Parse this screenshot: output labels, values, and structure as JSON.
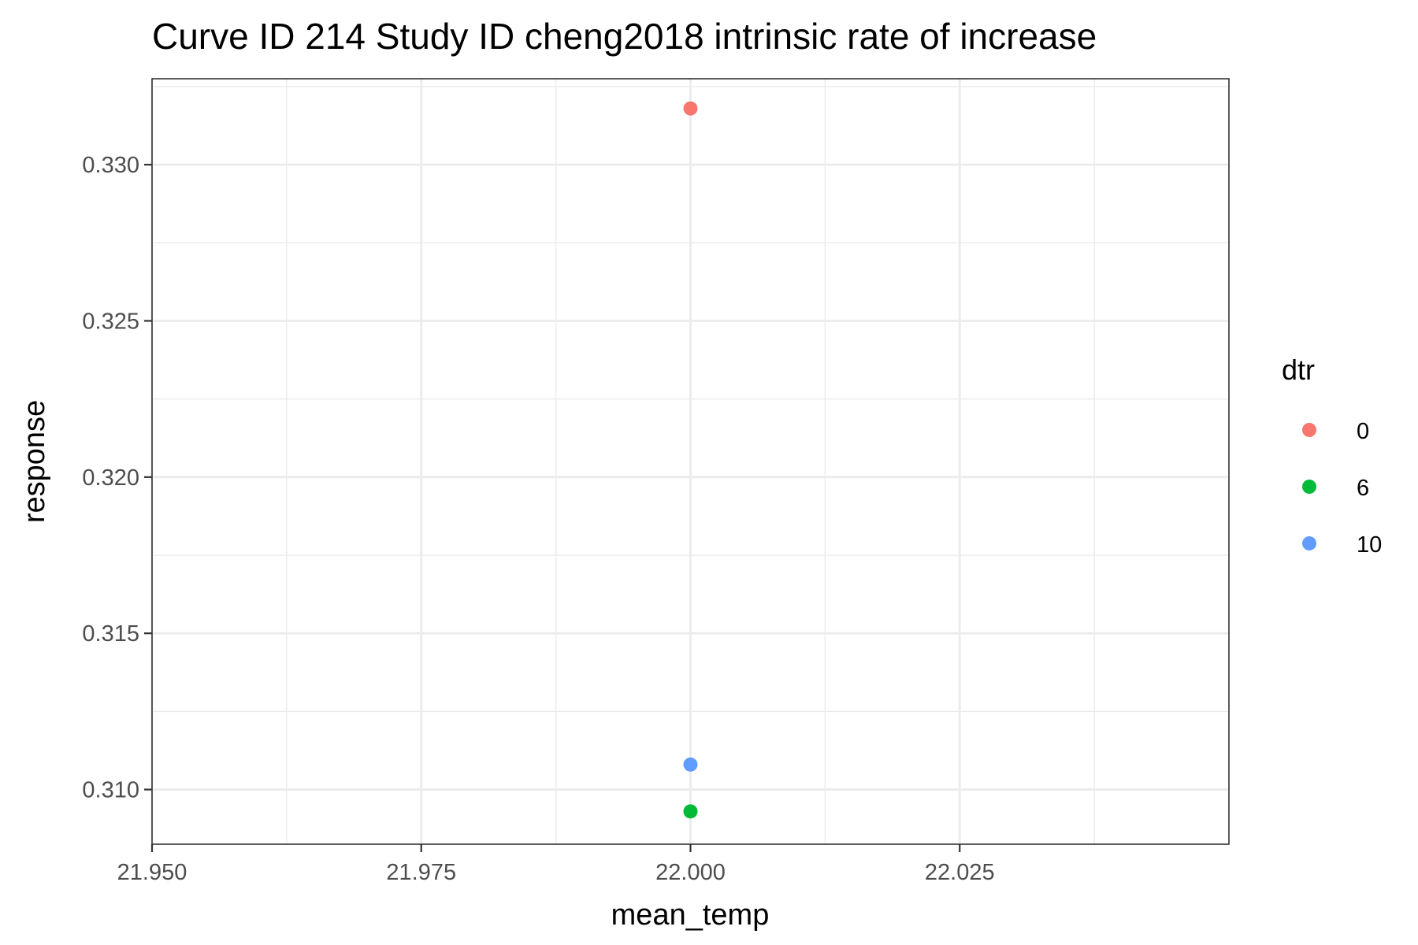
{
  "chart_data": {
    "type": "scatter",
    "title": "Curve ID 214 Study ID cheng2018 intrinsic rate of increase",
    "xlabel": "mean_temp",
    "ylabel": "response",
    "xlim": [
      21.95,
      22.05
    ],
    "ylim": [
      0.30825,
      0.33275
    ],
    "x_ticks": [
      21.95,
      21.975,
      22.0,
      22.025
    ],
    "x_tick_labels": [
      "21.950",
      "21.975",
      "22.000",
      "22.025"
    ],
    "y_ticks": [
      0.31,
      0.315,
      0.32,
      0.325,
      0.33
    ],
    "y_tick_labels": [
      "0.310",
      "0.315",
      "0.320",
      "0.325",
      "0.330"
    ],
    "grid": true,
    "legend": {
      "title": "dtr",
      "position": "right"
    },
    "series": [
      {
        "name": "0",
        "color": "#F8766D",
        "points": [
          {
            "x": 22.0,
            "y": 0.3318
          }
        ]
      },
      {
        "name": "6",
        "color": "#00BA38",
        "points": [
          {
            "x": 22.0,
            "y": 0.3093
          }
        ]
      },
      {
        "name": "10",
        "color": "#619CFF",
        "points": [
          {
            "x": 22.0,
            "y": 0.3108
          }
        ]
      }
    ]
  }
}
